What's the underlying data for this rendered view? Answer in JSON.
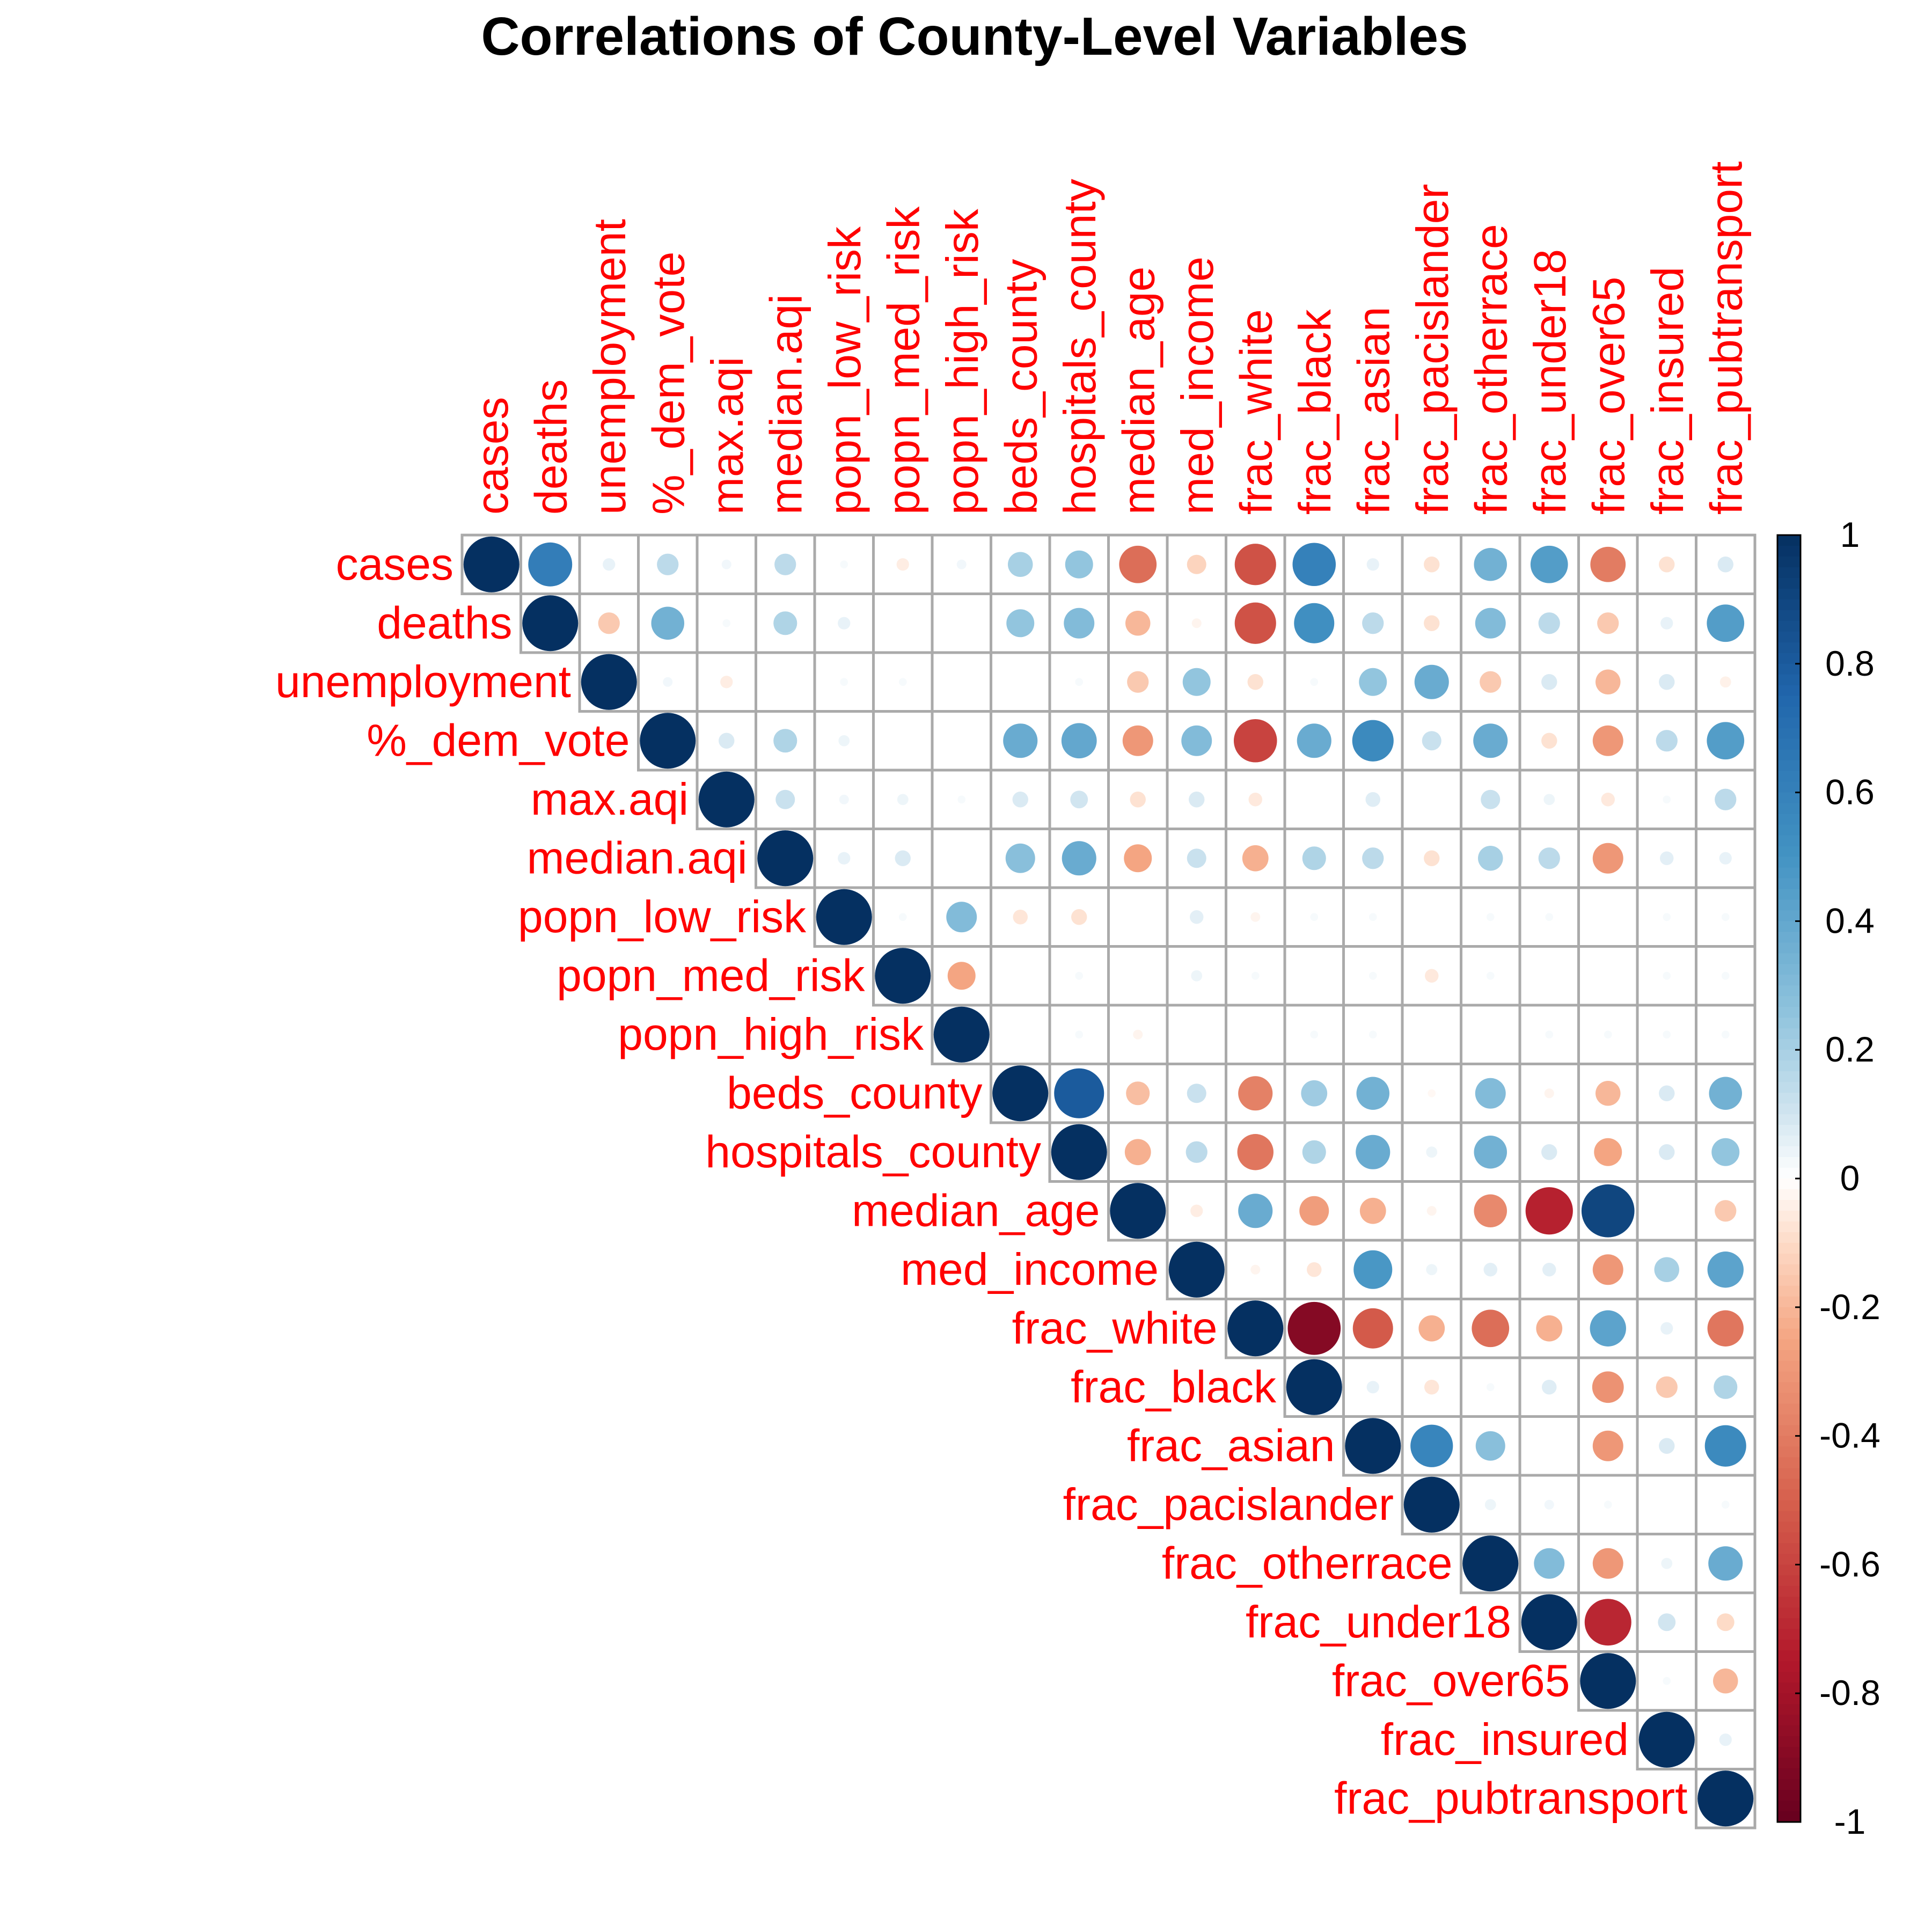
{
  "chart_data": {
    "type": "heatmap",
    "title": "Correlations of County-Level Variables",
    "variables": [
      "cases",
      "deaths",
      "unemployment",
      "%_dem_vote",
      "max.aqi",
      "median.aqi",
      "popn_low_risk",
      "popn_med_risk",
      "popn_high_risk",
      "beds_county",
      "hospitals_county",
      "median_age",
      "med_income",
      "frac_white",
      "frac_black",
      "frac_asian",
      "frac_pacislander",
      "frac_otherrace",
      "frac_under18",
      "frac_over65",
      "frac_insured",
      "frac_pubtransport"
    ],
    "matrix_layout": "upper-triangle",
    "glyph": "circle",
    "colorbar": {
      "ticks": [
        "1",
        "0.8",
        "0.6",
        "0.4",
        "0.2",
        "0",
        "-0.2",
        "-0.4",
        "-0.6",
        "-0.8",
        "-1"
      ],
      "range": [
        -1,
        1
      ]
    },
    "colors": {
      "label": "#ff0000",
      "grid": "#aaaaaa",
      "neg_extreme": "#67001f",
      "neutral": "#ffffff",
      "pos_extreme": "#053061"
    },
    "correlations": [
      [
        1,
        0.62,
        0.05,
        0.15,
        0.03,
        0.15,
        0.02,
        -0.05,
        0.03,
        0.2,
        0.25,
        -0.45,
        -0.12,
        -0.55,
        0.6,
        0.05,
        -0.08,
        0.35,
        0.45,
        -0.4,
        -0.08,
        0.08
      ],
      [
        1,
        -0.15,
        0.35,
        0.02,
        0.18,
        0.05,
        0,
        0,
        0.25,
        0.3,
        -0.2,
        -0.03,
        -0.55,
        0.52,
        0.15,
        -0.08,
        0.3,
        0.15,
        -0.15,
        0.05,
        0.45
      ],
      [
        1,
        0.03,
        -0.05,
        0,
        0.02,
        0.02,
        0,
        0,
        0.02,
        -0.15,
        0.25,
        -0.08,
        0.02,
        0.25,
        0.38,
        -0.15,
        0.08,
        -0.2,
        0.08,
        -0.04
      ],
      [
        1,
        0.08,
        0.18,
        0.04,
        0,
        0,
        0.38,
        0.4,
        -0.3,
        0.3,
        -0.6,
        0.38,
        0.55,
        0.12,
        0.38,
        -0.08,
        -0.3,
        0.15,
        0.45
      ],
      [
        1,
        0.12,
        0.03,
        0.04,
        0.02,
        0.08,
        0.1,
        -0.08,
        0.08,
        -0.06,
        0,
        0.07,
        0,
        0.12,
        0.04,
        -0.06,
        0.02,
        0.15
      ],
      [
        1,
        0.05,
        0.08,
        0,
        0.28,
        0.38,
        -0.25,
        0.12,
        -0.22,
        0.18,
        0.15,
        -0.08,
        0.2,
        0.15,
        -0.3,
        0.06,
        0.05
      ],
      [
        1,
        0.02,
        0.3,
        -0.07,
        -0.08,
        0,
        0.06,
        -0.03,
        0.02,
        0.02,
        0,
        0.02,
        0.02,
        0,
        0.02,
        0.02
      ],
      [
        1,
        -0.25,
        0,
        0.02,
        0,
        0.04,
        0.02,
        0,
        0.02,
        -0.06,
        0.02,
        0,
        0,
        0.02,
        0.02
      ],
      [
        1,
        0,
        0.02,
        -0.03,
        0,
        0,
        0.02,
        0.02,
        0,
        0,
        0.02,
        0.02,
        0.02,
        0.02
      ],
      [
        1,
        0.8,
        -0.18,
        0.12,
        -0.38,
        0.22,
        0.35,
        -0.02,
        0.3,
        -0.03,
        -0.2,
        0.08,
        0.35
      ],
      [
        1,
        -0.22,
        0.15,
        -0.42,
        0.18,
        0.38,
        0.04,
        0.35,
        0.08,
        -0.25,
        0.08,
        0.25
      ],
      [
        1,
        -0.05,
        0.38,
        -0.28,
        -0.22,
        -0.03,
        -0.35,
        -0.72,
        0.9,
        0,
        -0.15
      ],
      [
        1,
        -0.03,
        -0.07,
        0.48,
        0.04,
        0.06,
        0.06,
        -0.3,
        0.2,
        0.42
      ],
      [
        1,
        -0.9,
        -0.52,
        -0.22,
        -0.45,
        -0.22,
        0.42,
        0.05,
        -0.42
      ],
      [
        1,
        0.05,
        -0.07,
        0.02,
        0.07,
        -0.32,
        -0.15,
        0.18
      ],
      [
        1,
        0.58,
        0.28,
        0,
        -0.3,
        0.08,
        0.55
      ],
      [
        1,
        0.04,
        0.03,
        0.02,
        0,
        0.02
      ],
      [
        1,
        0.3,
        -0.3,
        0.04,
        0.38
      ],
      [
        1,
        -0.7,
        0.1,
        -0.1
      ],
      [
        1,
        0.02,
        -0.2
      ],
      [
        1,
        0.05
      ],
      [
        1
      ]
    ]
  }
}
